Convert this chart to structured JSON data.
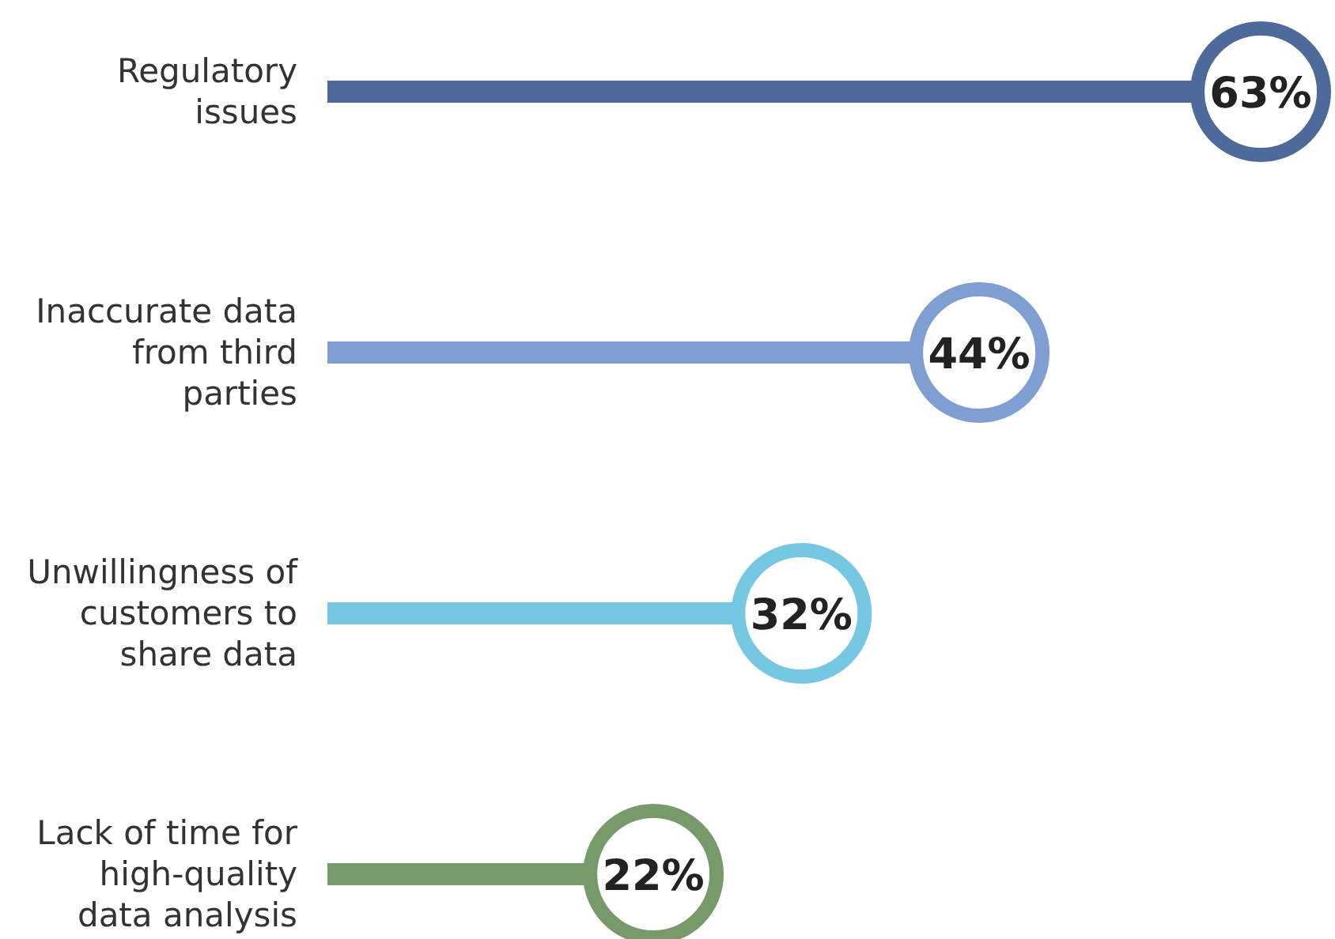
{
  "chart_data": {
    "type": "lollipop",
    "orientation": "horizontal",
    "categories": [
      "Regulatory issues",
      "Inaccurate data from third parties",
      "Unwillingness of customers to share data",
      "Lack of time for high-quality data analysis"
    ],
    "values": [
      63,
      44,
      32,
      22
    ],
    "colors": [
      "#4e6a9a",
      "#7f9fd2",
      "#76c8e2",
      "#779a6b"
    ],
    "data_labels": true,
    "value_labels": [
      "63%",
      "44%",
      "32%",
      "22%"
    ]
  }
}
